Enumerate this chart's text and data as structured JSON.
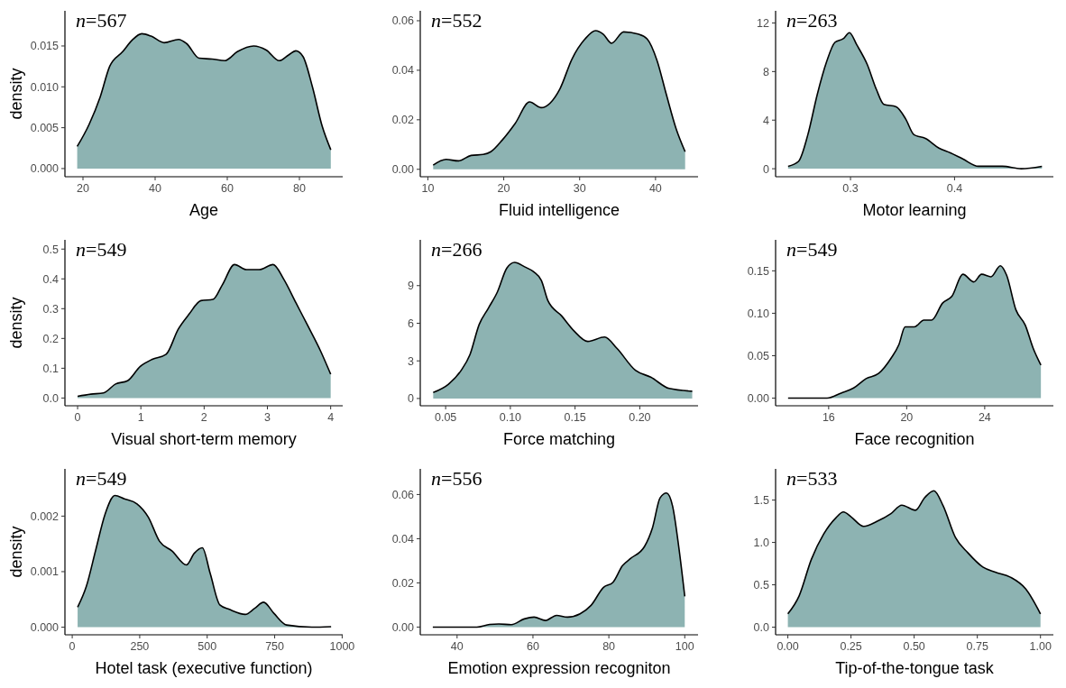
{
  "chart_data": [
    {
      "type": "area",
      "xlabel": "Age",
      "ylabel": "density",
      "annotations": [
        "n=567"
      ],
      "xlim": [
        15,
        92
      ],
      "ylim": [
        -0.001,
        0.0193
      ],
      "xticks": [
        20,
        40,
        60,
        80
      ],
      "yticks": [
        {
          "value": 0,
          "label": "0.000"
        },
        0.005,
        {
          "value": 0.01,
          "label": "0.010"
        },
        0.015
      ],
      "series": [
        {
          "color": "#8db3b2",
          "x": [
            18.4,
            21.7,
            24.8,
            27.4,
            31,
            33.6,
            36.3,
            38.9,
            42.5,
            46.5,
            48.7,
            52.2,
            55.8,
            59.3,
            62.8,
            67.3,
            70.8,
            74.4,
            77,
            79,
            81,
            83.6,
            86.3,
            88.7
          ],
          "values": [
            0.0027,
            0.0054,
            0.0088,
            0.0125,
            0.0143,
            0.0157,
            0.0165,
            0.0162,
            0.0154,
            0.0158,
            0.0153,
            0.0135,
            0.0134,
            0.0132,
            0.0143,
            0.015,
            0.0145,
            0.0132,
            0.0139,
            0.0144,
            0.0137,
            0.01,
            0.0052,
            0.0023
          ]
        }
      ]
    },
    {
      "type": "area",
      "xlabel": "Fluid intelligence",
      "annotations": [
        "n=552"
      ],
      "xlim": [
        9,
        45.6
      ],
      "ylim": [
        -0.003,
        0.064
      ],
      "xticks": [
        10,
        20,
        30,
        40
      ],
      "yticks": [
        {
          "value": 0,
          "label": "0.00"
        },
        0.02,
        0.04,
        0.06
      ],
      "series": [
        {
          "color": "#8db3b2",
          "x": [
            10.7,
            12.4,
            14,
            15.7,
            17.3,
            18.3,
            19.8,
            21.5,
            23.4,
            24.9,
            27.4,
            29,
            30.7,
            32.1,
            33.1,
            34.2,
            35.8,
            37.7,
            38.9,
            40.2,
            41.4,
            42.7,
            43.9
          ],
          "values": [
            0.0017,
            0.004,
            0.0034,
            0.0056,
            0.006,
            0.0071,
            0.0118,
            0.0185,
            0.0272,
            0.0249,
            0.0325,
            0.0446,
            0.0526,
            0.056,
            0.0546,
            0.0509,
            0.0555,
            0.0546,
            0.0526,
            0.0439,
            0.0305,
            0.0165,
            0.0071
          ]
        }
      ]
    },
    {
      "type": "area",
      "xlabel": "Motor learning",
      "annotations": [
        "n=263"
      ],
      "xlim": [
        0.228,
        0.495
      ],
      "ylim": [
        -0.66,
        13
      ],
      "xticks": [
        0.3,
        0.4
      ],
      "yticks": [
        0,
        4,
        8,
        12
      ],
      "series": [
        {
          "color": "#8db3b2",
          "x": [
            0.24,
            0.25,
            0.259,
            0.268,
            0.277,
            0.285,
            0.293,
            0.299,
            0.306,
            0.316,
            0.325,
            0.332,
            0.344,
            0.353,
            0.361,
            0.372,
            0.385,
            0.396,
            0.408,
            0.423,
            0.446,
            0.464,
            0.484
          ],
          "values": [
            0.2,
            0.6,
            2.8,
            6.1,
            8.8,
            10.4,
            10.7,
            11.2,
            10.2,
            8.6,
            6.5,
            5.3,
            5.1,
            4.1,
            2.8,
            2.5,
            1.7,
            1.3,
            0.8,
            0.2,
            0.2,
            0,
            0.2
          ]
        }
      ]
    },
    {
      "type": "area",
      "xlabel": "Visual short-term memory",
      "ylabel": "density",
      "annotations": [
        "n=549"
      ],
      "xlim": [
        -0.2,
        4.19
      ],
      "ylim": [
        -0.026,
        0.531
      ],
      "xticks": [
        0,
        1,
        2,
        3,
        4
      ],
      "yticks": [
        {
          "value": 0,
          "label": "0.0"
        },
        0.1,
        0.2,
        0.3,
        0.4,
        0.5
      ],
      "series": [
        {
          "color": "#8db3b2",
          "x": [
            0,
            0.21,
            0.41,
            0.6,
            0.79,
            0.99,
            1.18,
            1.4,
            1.59,
            1.76,
            1.95,
            2.14,
            2.29,
            2.48,
            2.67,
            2.87,
            3.09,
            3.26,
            3.45,
            3.64,
            3.84,
            4
          ],
          "values": [
            0.006,
            0.013,
            0.017,
            0.047,
            0.058,
            0.106,
            0.13,
            0.147,
            0.231,
            0.281,
            0.327,
            0.331,
            0.381,
            0.448,
            0.431,
            0.431,
            0.448,
            0.398,
            0.32,
            0.242,
            0.158,
            0.08
          ]
        }
      ]
    },
    {
      "type": "area",
      "xlabel": "Force matching",
      "annotations": [
        "n=266"
      ],
      "xlim": [
        0.0304,
        0.245
      ],
      "ylim": [
        -0.58,
        12.65
      ],
      "xticks": [
        0.05,
        {
          "value": 0.1,
          "label": "0.10"
        },
        0.15,
        {
          "value": 0.2,
          "label": "0.20"
        }
      ],
      "yticks": [
        0,
        3,
        6,
        9
      ],
      "series": [
        {
          "color": "#8db3b2",
          "x": [
            0.0404,
            0.0522,
            0.0617,
            0.0688,
            0.0759,
            0.083,
            0.09,
            0.0973,
            0.1033,
            0.111,
            0.118,
            0.124,
            0.129,
            0.1395,
            0.1491,
            0.1598,
            0.1728,
            0.1823,
            0.1966,
            0.2085,
            0.2227,
            0.2405
          ],
          "values": [
            0.48,
            1.14,
            2.2,
            3.5,
            5.9,
            7.2,
            8.5,
            10.4,
            10.85,
            10.5,
            10.1,
            9.4,
            7.8,
            6.6,
            5.4,
            4.55,
            4.9,
            4,
            2.25,
            1.7,
            0.8,
            0.58
          ]
        }
      ]
    },
    {
      "type": "area",
      "xlabel": "Face recognition",
      "annotations": [
        "n=549"
      ],
      "xlim": [
        13.28,
        27.52
      ],
      "ylim": [
        -0.009,
        0.1865
      ],
      "xticks": [
        16,
        20,
        24
      ],
      "yticks": [
        {
          "value": 0,
          "label": "0.00"
        },
        0.05,
        {
          "value": 0.1,
          "label": "0.10"
        },
        0.15
      ],
      "series": [
        {
          "color": "#8db3b2",
          "x": [
            13.92,
            15.04,
            15.92,
            16.64,
            17.28,
            17.92,
            18.56,
            19.2,
            19.6,
            19.92,
            20.4,
            20.88,
            21.28,
            21.84,
            22.32,
            22.88,
            23.44,
            23.84,
            24.32,
            24.8,
            25.12,
            25.6,
            26.08,
            26.48,
            26.88
          ],
          "values": [
            0,
            0,
            0,
            0.006,
            0.012,
            0.023,
            0.029,
            0.047,
            0.063,
            0.084,
            0.084,
            0.092,
            0.092,
            0.112,
            0.12,
            0.146,
            0.137,
            0.146,
            0.143,
            0.156,
            0.145,
            0.104,
            0.086,
            0.059,
            0.039
          ]
        }
      ]
    },
    {
      "type": "area",
      "xlabel": "Hotel task (executive function)",
      "ylabel": "density",
      "annotations": [
        "n=549"
      ],
      "xlim": [
        -27,
        1002
      ],
      "ylim": [
        -0.000137,
        0.00285
      ],
      "xticks": [
        0,
        250,
        500,
        750,
        1000
      ],
      "yticks": [
        {
          "value": 0,
          "label": "0.000"
        },
        0.001,
        0.002
      ],
      "series": [
        {
          "color": "#8db3b2",
          "x": [
            20,
            52,
            87,
            122,
            158,
            193,
            240,
            282,
            323,
            370,
            423,
            452,
            482,
            511,
            547,
            582,
            641,
            676,
            709,
            747,
            794,
            888,
            959
          ],
          "values": [
            0.00036,
            0.00073,
            0.00139,
            0.00204,
            0.00237,
            0.00231,
            0.00222,
            0.00198,
            0.00155,
            0.00137,
            0.00112,
            0.00133,
            0.00143,
            0.00097,
            0.0004,
            0.00032,
            0.00023,
            0.00034,
            0.00045,
            0.00025,
            4e-05,
            0,
            1e-05
          ]
        }
      ]
    },
    {
      "type": "area",
      "xlabel": "Emotion expression recogniton",
      "annotations": [
        "n=556"
      ],
      "xlim": [
        30.3,
        103.5
      ],
      "ylim": [
        -0.0035,
        0.0716
      ],
      "xticks": [
        40,
        60,
        80,
        100
      ],
      "yticks": [
        {
          "value": 0,
          "label": "0.00"
        },
        0.02,
        0.04,
        0.06
      ],
      "series": [
        {
          "color": "#8db3b2",
          "x": [
            33.6,
            40.3,
            45.2,
            48.6,
            51,
            54.3,
            57.7,
            60.3,
            63.3,
            66.2,
            69.1,
            72.4,
            75.3,
            78.6,
            81.1,
            83.6,
            85.7,
            89.4,
            91.5,
            93.5,
            95.2,
            96.8,
            98.5,
            100
          ],
          "values": [
            0,
            0,
            0,
            0.0012,
            0.0014,
            0.0011,
            0.0037,
            0.0045,
            0.003,
            0.0053,
            0.0045,
            0.006,
            0.0098,
            0.018,
            0.0203,
            0.0278,
            0.031,
            0.0365,
            0.045,
            0.0585,
            0.0607,
            0.0547,
            0.0352,
            0.0139
          ]
        }
      ]
    },
    {
      "type": "area",
      "xlabel": "Tip-of-the-tongue task",
      "annotations": [
        "n=533"
      ],
      "xlim": [
        -0.0485,
        1.051
      ],
      "ylim": [
        -0.09,
        1.868
      ],
      "xticks": [
        {
          "value": 0,
          "label": "0.00"
        },
        0.25,
        {
          "value": 0.5,
          "label": "0.50"
        },
        0.75,
        {
          "value": 1,
          "label": "1.00"
        }
      ],
      "yticks": [
        {
          "value": 0,
          "label": "0.0"
        },
        0.5,
        {
          "value": 1,
          "label": "1.0"
        },
        1.5
      ],
      "series": [
        {
          "color": "#8db3b2",
          "x": [
            0,
            0.045,
            0.093,
            0.142,
            0.19,
            0.22,
            0.251,
            0.3,
            0.354,
            0.408,
            0.451,
            0.505,
            0.542,
            0.578,
            0.615,
            0.663,
            0.712,
            0.772,
            0.821,
            0.881,
            0.942,
            1
          ],
          "values": [
            0.157,
            0.372,
            0.8,
            1.1,
            1.29,
            1.36,
            1.3,
            1.19,
            1.25,
            1.34,
            1.44,
            1.38,
            1.53,
            1.61,
            1.43,
            1.06,
            0.88,
            0.71,
            0.65,
            0.59,
            0.45,
            0.157
          ]
        }
      ]
    }
  ]
}
